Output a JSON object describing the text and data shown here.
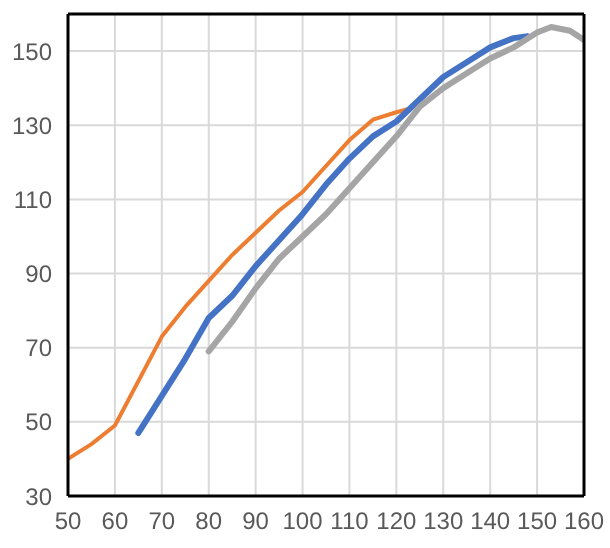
{
  "chart_data": {
    "type": "line",
    "xlim": [
      50,
      160
    ],
    "xticks": [
      50,
      60,
      70,
      80,
      90,
      100,
      110,
      120,
      130,
      140,
      150,
      160
    ],
    "ylim": [
      30,
      160
    ],
    "yticks": [
      30,
      50,
      70,
      90,
      110,
      130,
      150
    ],
    "grid": true,
    "marker": "none",
    "line_style": "solid",
    "series": [
      {
        "color": "#ed7d31",
        "x": [
          50,
          55,
          60,
          65,
          70,
          75,
          80,
          85,
          90,
          95,
          100,
          105,
          110,
          115,
          120,
          123
        ],
        "values": [
          40,
          44,
          49,
          61,
          73,
          81,
          88,
          95,
          101,
          107,
          112,
          119,
          126,
          131.5,
          133.5,
          134.5
        ]
      },
      {
        "color": "#4472c4",
        "x": [
          65,
          70,
          75,
          80,
          85,
          90,
          95,
          100,
          105,
          110,
          115,
          120,
          125,
          130,
          135,
          140,
          145,
          148
        ],
        "values": [
          47,
          57,
          67,
          78,
          84,
          92,
          99,
          106,
          114,
          121,
          127,
          131,
          137,
          143,
          147,
          151,
          153.5,
          154
        ]
      },
      {
        "color": "#a5a5a5",
        "x": [
          80,
          85,
          90,
          95,
          100,
          105,
          110,
          115,
          120,
          125,
          130,
          135,
          140,
          145,
          150,
          153,
          157,
          160
        ],
        "values": [
          69,
          77,
          86,
          94,
          100,
          106,
          113,
          120,
          127,
          135,
          140,
          144,
          148,
          151,
          155,
          156.5,
          155.5,
          153
        ]
      }
    ]
  }
}
